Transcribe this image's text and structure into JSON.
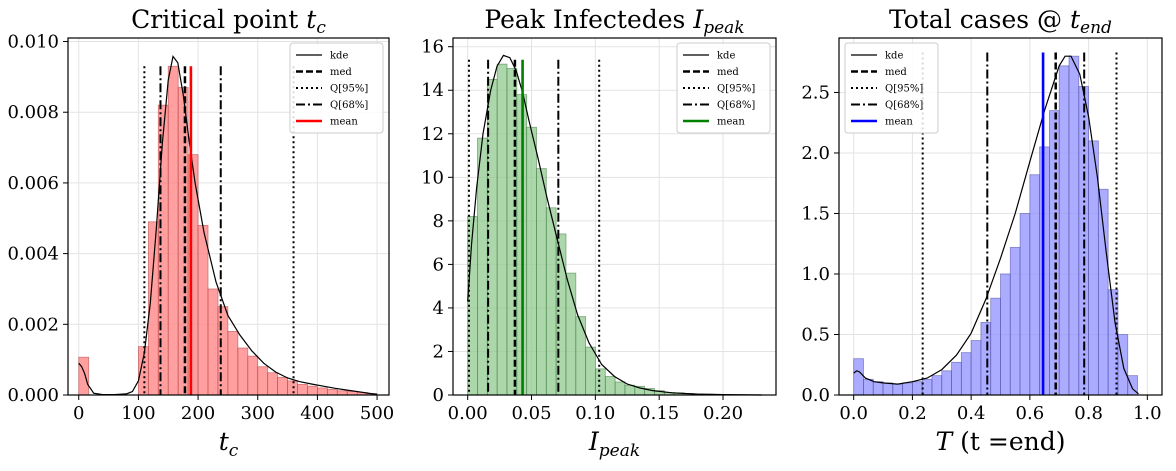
{
  "chart_data": [
    {
      "type": "bar",
      "title": "Critical point",
      "title_math": "t",
      "title_math_sub": "c",
      "xlabel_math": "t",
      "xlabel_math_sub": "c",
      "xlim": [
        -18,
        520
      ],
      "ylim": [
        0,
        0.0101
      ],
      "xticks": [
        0,
        100,
        200,
        300,
        400,
        500
      ],
      "yticks": [
        0.0,
        0.002,
        0.004,
        0.006,
        0.008,
        0.01
      ],
      "ytick_labels": [
        "0.000",
        "0.002",
        "0.004",
        "0.006",
        "0.008",
        "0.010"
      ],
      "bar_color": "#ff7f7f",
      "bar_edge": "#b04040",
      "accent": "#ff0000",
      "bin_width": 16.7,
      "bins": [
        [
          0,
          0.00107
        ],
        [
          16.7,
          0
        ],
        [
          33.3,
          0
        ],
        [
          50,
          0
        ],
        [
          66.7,
          0
        ],
        [
          83.3,
          0
        ],
        [
          100,
          0.00137
        ],
        [
          116.7,
          0.0049
        ],
        [
          133.3,
          0.0082
        ],
        [
          150,
          0.0093
        ],
        [
          166.7,
          0.0087
        ],
        [
          183.3,
          0.0068
        ],
        [
          200,
          0.0048
        ],
        [
          216.7,
          0.003
        ],
        [
          233.3,
          0.0025
        ],
        [
          250,
          0.0018
        ],
        [
          266.7,
          0.00133
        ],
        [
          283.3,
          0.0011
        ],
        [
          300,
          0.0008
        ],
        [
          316.7,
          0.00063
        ],
        [
          333.3,
          0.0005
        ],
        [
          350,
          0.0004
        ],
        [
          366.7,
          0.0003
        ],
        [
          383.3,
          0.00025
        ],
        [
          400,
          0.0002
        ],
        [
          416.7,
          0.00016
        ],
        [
          433.3,
          0.00012
        ],
        [
          450,
          0.0001
        ],
        [
          466.7,
          7e-05
        ],
        [
          483.3,
          4e-05
        ]
      ],
      "kde": [
        [
          0,
          0.0009
        ],
        [
          5,
          0.0008
        ],
        [
          10,
          0.0006
        ],
        [
          15,
          0.0003
        ],
        [
          25,
          5e-05
        ],
        [
          40,
          1e-05
        ],
        [
          60,
          1e-05
        ],
        [
          80,
          3e-05
        ],
        [
          90,
          0.0001
        ],
        [
          100,
          0.0004
        ],
        [
          110,
          0.0012
        ],
        [
          120,
          0.0026
        ],
        [
          130,
          0.0047
        ],
        [
          140,
          0.0071
        ],
        [
          150,
          0.0089
        ],
        [
          158,
          0.00958
        ],
        [
          166,
          0.0094
        ],
        [
          175,
          0.0085
        ],
        [
          185,
          0.0072
        ],
        [
          195,
          0.006
        ],
        [
          210,
          0.0046
        ],
        [
          230,
          0.0032
        ],
        [
          250,
          0.00225
        ],
        [
          270,
          0.0017
        ],
        [
          290,
          0.00125
        ],
        [
          310,
          0.0009
        ],
        [
          330,
          0.00065
        ],
        [
          350,
          0.00048
        ],
        [
          370,
          0.00038
        ],
        [
          390,
          0.00031
        ],
        [
          410,
          0.00025
        ],
        [
          430,
          0.00019
        ],
        [
          450,
          0.00014
        ],
        [
          470,
          9e-05
        ],
        [
          490,
          4e-05
        ],
        [
          500,
          2e-05
        ]
      ],
      "stat_lines": {
        "q95": [
          110,
          360
        ],
        "q68": [
          137,
          238
        ],
        "med": [
          178
        ],
        "mean": [
          188
        ]
      },
      "line_top": 0.0093,
      "legend": [
        "kde",
        "med",
        "Q[95%]",
        "Q[68%]",
        "mean"
      ],
      "legend_position": "top-right"
    },
    {
      "type": "bar",
      "title": "Peak Infectedes",
      "title_math": "I",
      "title_math_sub": "peak",
      "xlabel_math": "I",
      "xlabel_math_sub": "peak",
      "xlim": [
        -0.0115,
        0.2415
      ],
      "ylim": [
        0,
        16.4
      ],
      "xticks": [
        0.0,
        0.05,
        0.1,
        0.15,
        0.2
      ],
      "xtick_labels": [
        "0.00",
        "0.05",
        "0.10",
        "0.15",
        "0.20"
      ],
      "yticks": [
        0,
        2,
        4,
        6,
        8,
        10,
        12,
        14,
        16
      ],
      "ytick_labels": [
        "0",
        "2",
        "4",
        "6",
        "8",
        "10",
        "12",
        "14",
        "16"
      ],
      "bar_color": "#8fc98f",
      "bar_edge": "#3d7a3d",
      "accent": "#008000",
      "bin_width": 0.0077,
      "bins": [
        [
          0.0,
          8.2
        ],
        [
          0.0077,
          11.8
        ],
        [
          0.0154,
          14.5
        ],
        [
          0.0231,
          15.2
        ],
        [
          0.0308,
          15.0
        ],
        [
          0.0385,
          13.8
        ],
        [
          0.0462,
          12.3
        ],
        [
          0.0539,
          10.4
        ],
        [
          0.0616,
          8.6
        ],
        [
          0.0693,
          7.4
        ],
        [
          0.077,
          5.6
        ],
        [
          0.0847,
          3.6
        ],
        [
          0.0924,
          2.2
        ],
        [
          0.1001,
          1.2
        ],
        [
          0.1078,
          0.85
        ],
        [
          0.1155,
          0.6
        ],
        [
          0.1232,
          0.45
        ],
        [
          0.1309,
          0.4
        ],
        [
          0.1386,
          0.3
        ],
        [
          0.1463,
          0.2
        ],
        [
          0.154,
          0.12
        ],
        [
          0.1617,
          0.1
        ],
        [
          0.1694,
          0.07
        ],
        [
          0.1771,
          0.05
        ],
        [
          0.1848,
          0.04
        ],
        [
          0.1925,
          0.03
        ],
        [
          0.2002,
          0.02
        ],
        [
          0.2079,
          0.01
        ],
        [
          0.2156,
          0.01
        ],
        [
          0.2233,
          0.01
        ]
      ],
      "kde": [
        [
          0.0,
          4.3
        ],
        [
          0.003,
          6.9
        ],
        [
          0.007,
          9.5
        ],
        [
          0.012,
          12.0
        ],
        [
          0.018,
          14.0
        ],
        [
          0.023,
          15.1
        ],
        [
          0.028,
          15.6
        ],
        [
          0.033,
          15.5
        ],
        [
          0.038,
          14.9
        ],
        [
          0.043,
          13.9
        ],
        [
          0.048,
          12.6
        ],
        [
          0.055,
          10.9
        ],
        [
          0.062,
          9.1
        ],
        [
          0.07,
          7.2
        ],
        [
          0.078,
          5.3
        ],
        [
          0.086,
          3.7
        ],
        [
          0.095,
          2.4
        ],
        [
          0.105,
          1.4
        ],
        [
          0.115,
          0.85
        ],
        [
          0.125,
          0.5
        ],
        [
          0.135,
          0.32
        ],
        [
          0.145,
          0.2
        ],
        [
          0.16,
          0.1
        ],
        [
          0.18,
          0.04
        ],
        [
          0.2,
          0.02
        ],
        [
          0.23,
          0.0
        ]
      ],
      "stat_lines": {
        "q95": [
          0.001,
          0.103
        ],
        "q68": [
          0.016,
          0.071
        ],
        "med": [
          0.037
        ],
        "mean": [
          0.043
        ]
      },
      "line_top": 15.4,
      "legend": [
        "kde",
        "med",
        "Q[95%]",
        "Q[68%]",
        "mean"
      ],
      "legend_position": "top-right"
    },
    {
      "type": "bar",
      "title": "Total cases @",
      "title_math": "t",
      "title_math_sub": "end",
      "xlabel_math": "T",
      "xlabel_rest": "(t =end)",
      "xlim": [
        -0.05,
        1.05
      ],
      "ylim": [
        0,
        2.95
      ],
      "xticks": [
        0.0,
        0.2,
        0.4,
        0.6,
        0.8,
        1.0
      ],
      "xtick_labels": [
        "0.0",
        "0.2",
        "0.4",
        "0.6",
        "0.8",
        "1.0"
      ],
      "yticks": [
        0.0,
        0.5,
        1.0,
        1.5,
        2.0,
        2.5
      ],
      "ytick_labels": [
        "0.0",
        "0.5",
        "1.0",
        "1.5",
        "2.0",
        "2.5"
      ],
      "bar_color": "#8f8fff",
      "bar_edge": "#4a4aa0",
      "accent": "#0000ff",
      "bin_width": 0.0333,
      "bins": [
        [
          0.0,
          0.3
        ],
        [
          0.0333,
          0.13
        ],
        [
          0.0667,
          0.11
        ],
        [
          0.1,
          0.1
        ],
        [
          0.1333,
          0.09
        ],
        [
          0.1667,
          0.1
        ],
        [
          0.2,
          0.11
        ],
        [
          0.2333,
          0.13
        ],
        [
          0.2667,
          0.16
        ],
        [
          0.3,
          0.2
        ],
        [
          0.3333,
          0.27
        ],
        [
          0.3667,
          0.35
        ],
        [
          0.4,
          0.45
        ],
        [
          0.4333,
          0.6
        ],
        [
          0.4667,
          0.8
        ],
        [
          0.5,
          1.0
        ],
        [
          0.5333,
          1.22
        ],
        [
          0.5667,
          1.5
        ],
        [
          0.6,
          1.82
        ],
        [
          0.6333,
          2.05
        ],
        [
          0.6667,
          2.35
        ],
        [
          0.7,
          2.72
        ],
        [
          0.7333,
          2.8
        ],
        [
          0.7667,
          2.55
        ],
        [
          0.8,
          2.1
        ],
        [
          0.8333,
          1.7
        ],
        [
          0.8667,
          0.87
        ],
        [
          0.9,
          0.5
        ],
        [
          0.9333,
          0.16
        ],
        [
          0.9667,
          0.0
        ]
      ],
      "kde": [
        [
          0.0,
          0.18
        ],
        [
          0.01,
          0.2
        ],
        [
          0.02,
          0.19
        ],
        [
          0.04,
          0.14
        ],
        [
          0.07,
          0.11
        ],
        [
          0.1,
          0.1
        ],
        [
          0.15,
          0.09
        ],
        [
          0.2,
          0.11
        ],
        [
          0.25,
          0.14
        ],
        [
          0.3,
          0.21
        ],
        [
          0.35,
          0.33
        ],
        [
          0.4,
          0.51
        ],
        [
          0.45,
          0.79
        ],
        [
          0.5,
          1.13
        ],
        [
          0.55,
          1.5
        ],
        [
          0.6,
          1.93
        ],
        [
          0.65,
          2.35
        ],
        [
          0.7,
          2.72
        ],
        [
          0.72,
          2.8
        ],
        [
          0.74,
          2.8
        ],
        [
          0.77,
          2.65
        ],
        [
          0.8,
          2.3
        ],
        [
          0.83,
          1.8
        ],
        [
          0.86,
          1.18
        ],
        [
          0.89,
          0.6
        ],
        [
          0.92,
          0.22
        ],
        [
          0.95,
          0.05
        ],
        [
          0.97,
          0.01
        ]
      ],
      "stat_lines": {
        "q95": [
          0.235,
          0.895
        ],
        "q68": [
          0.455,
          0.785
        ],
        "med": [
          0.688
        ],
        "mean": [
          0.645
        ]
      },
      "line_top": 2.83,
      "legend": [
        "kde",
        "med",
        "Q[95%]",
        "Q[68%]",
        "mean"
      ],
      "legend_position": "top-left"
    }
  ]
}
